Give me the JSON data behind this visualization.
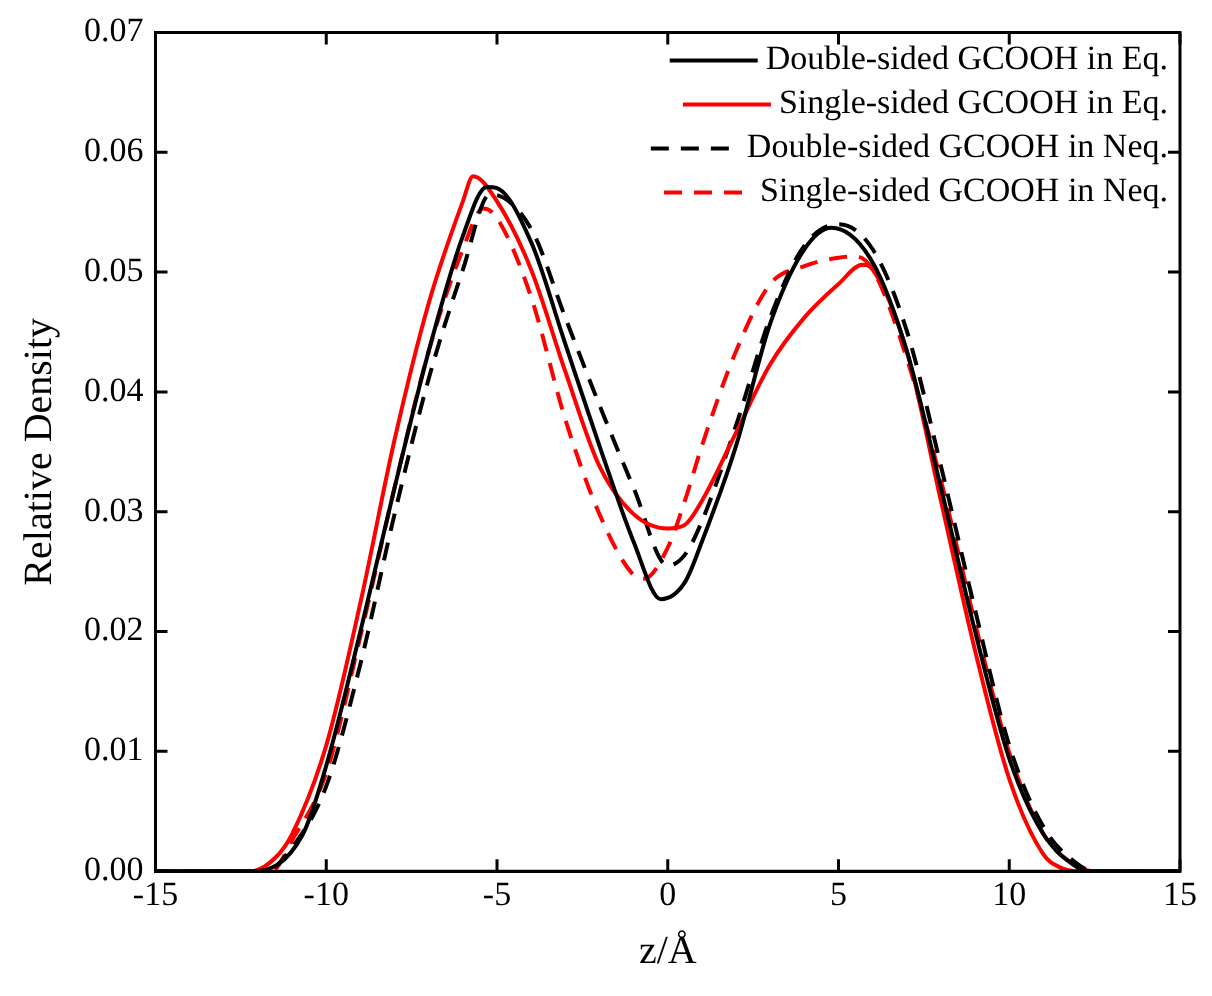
{
  "chart_data": {
    "type": "line",
    "xlabel": "z/Å",
    "ylabel": "Relative Density",
    "xlim": [
      -15,
      15
    ],
    "ylim": [
      0,
      0.07
    ],
    "xticks": [
      -15,
      -10,
      -5,
      0,
      5,
      10,
      15
    ],
    "yticks": [
      {
        "value": 0,
        "label": "0.00"
      },
      {
        "value": 0.01,
        "label": "0.01"
      },
      {
        "value": 0.02,
        "label": "0.02"
      },
      {
        "value": 0.03,
        "label": "0.03"
      },
      {
        "value": 0.04,
        "label": "0.04"
      },
      {
        "value": 0.05,
        "label": "0.05"
      },
      {
        "value": 0.06,
        "label": "0.06"
      },
      {
        "value": 0.07,
        "label": "0.07"
      }
    ],
    "grid": false,
    "legend": "top right",
    "marker": "none",
    "series": [
      {
        "name": "Double-sided GCOOH in Eq.",
        "color": "#000000",
        "line_style": "solid",
        "x": [
          -15,
          -12.1,
          -10.7,
          -10,
          -9,
          -8,
          -7,
          -6,
          -5.3,
          -5,
          -4,
          -3,
          -2,
          -1,
          -0.2,
          0.5,
          1,
          2,
          3,
          4,
          4.8,
          6,
          7,
          8,
          9,
          10,
          11,
          12,
          12.3,
          15
        ],
        "values": [
          0,
          0,
          0.003,
          0.0088,
          0.02,
          0.032,
          0.0434,
          0.053,
          0.0571,
          0.057,
          0.0525,
          0.044,
          0.0355,
          0.0275,
          0.0227,
          0.0241,
          0.0275,
          0.0355,
          0.0457,
          0.0519,
          0.0537,
          0.0508,
          0.0434,
          0.032,
          0.02,
          0.0094,
          0.0031,
          0.0003,
          0,
          0
        ]
      },
      {
        "name": "Single-sided GCOOH in Eq.",
        "color": "#ff0000",
        "line_style": "solid",
        "x": [
          -15,
          -12.2,
          -11.5,
          -11,
          -10,
          -9,
          -8,
          -7,
          -6,
          -5.7,
          -5,
          -4,
          -3,
          -2,
          -1,
          0,
          0.5,
          1,
          2,
          3,
          4,
          5,
          5.7,
          6,
          7,
          8,
          9,
          10,
          11,
          11.5,
          12,
          15
        ],
        "values": [
          0,
          0,
          0.0011,
          0.0031,
          0.0105,
          0.0224,
          0.036,
          0.0474,
          0.0559,
          0.058,
          0.0559,
          0.0502,
          0.0417,
          0.0338,
          0.0298,
          0.0286,
          0.0289,
          0.0309,
          0.0366,
          0.0423,
          0.0462,
          0.049,
          0.0506,
          0.0502,
          0.0434,
          0.0309,
          0.0184,
          0.0077,
          0.0014,
          0.0003,
          0,
          0
        ]
      },
      {
        "name": "Double-sided GCOOH in Neq.",
        "color": "#000000",
        "line_style": "dashed",
        "x": [
          -15,
          -11.8,
          -11,
          -10,
          -9,
          -8,
          -7,
          -6,
          -5.2,
          -4,
          -3,
          -2,
          -1,
          0,
          0.5,
          1,
          2,
          3,
          4,
          5,
          6,
          7,
          8,
          9,
          10,
          11,
          12,
          12.5,
          15
        ],
        "values": [
          0,
          0,
          0.002,
          0.0071,
          0.0173,
          0.0298,
          0.0411,
          0.0502,
          0.0565,
          0.0536,
          0.0462,
          0.0389,
          0.032,
          0.0255,
          0.0264,
          0.0292,
          0.0372,
          0.0462,
          0.0522,
          0.054,
          0.0519,
          0.0451,
          0.0338,
          0.0218,
          0.0105,
          0.0037,
          0.0006,
          0,
          0
        ]
      },
      {
        "name": "Single-sided GCOOH in Neq.",
        "color": "#ff0000",
        "line_style": "dashed",
        "x": [
          -15,
          -11.6,
          -11,
          -10,
          -9,
          -8,
          -7,
          -6,
          -5.4,
          -5,
          -4,
          -3,
          -2,
          -1,
          -0.7,
          0,
          0.5,
          1,
          2,
          3,
          4,
          5,
          5.5,
          6,
          7,
          8,
          9,
          10,
          11,
          12,
          12.5,
          15
        ],
        "values": [
          0,
          0,
          0.0026,
          0.0082,
          0.0196,
          0.032,
          0.0434,
          0.0519,
          0.0553,
          0.0545,
          0.0479,
          0.0377,
          0.0298,
          0.0247,
          0.0244,
          0.027,
          0.0309,
          0.0355,
          0.0434,
          0.049,
          0.0505,
          0.0512,
          0.0513,
          0.0502,
          0.0428,
          0.0326,
          0.0207,
          0.0099,
          0.0031,
          0.0004,
          0,
          0
        ]
      }
    ]
  }
}
